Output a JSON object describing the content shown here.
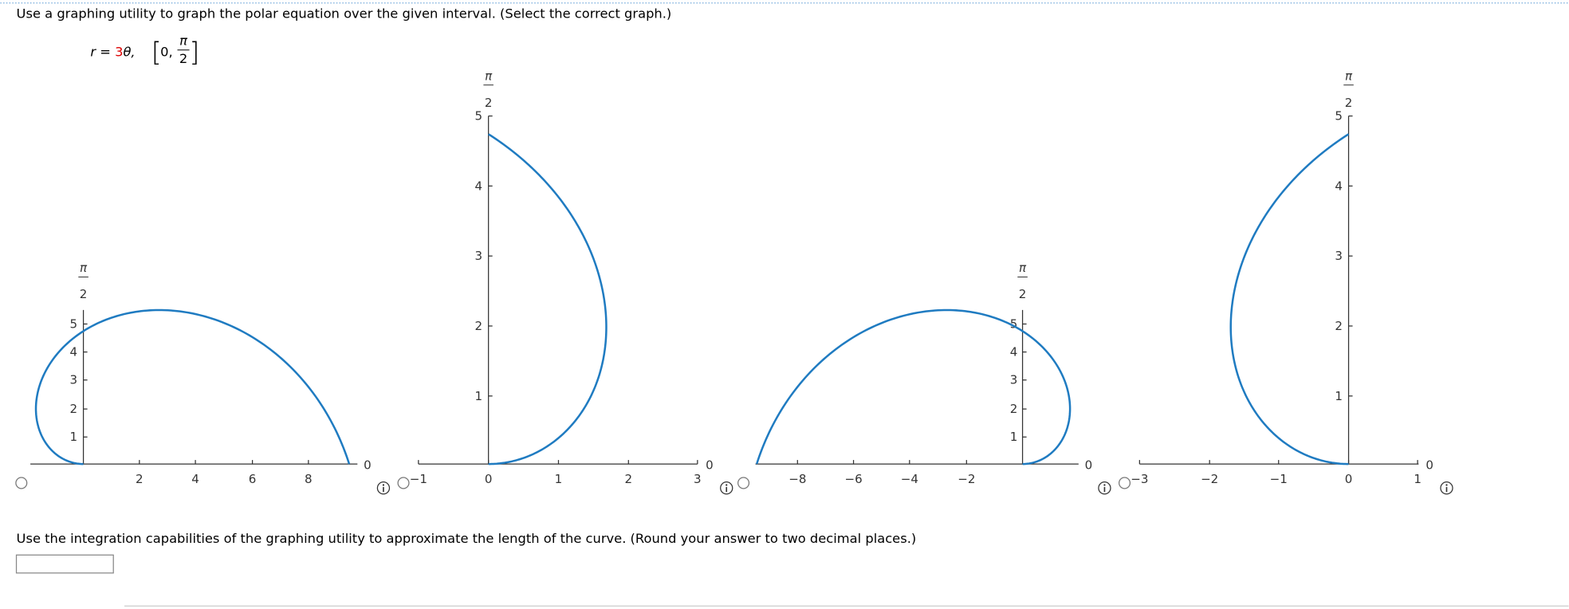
{
  "question": "Use a graphing utility to graph the polar equation over the given interval. (Select the correct graph.)",
  "equation": {
    "lhs": "r",
    "equals": " = ",
    "coefficient": "3",
    "variable": "θ,",
    "open_bracket": "[",
    "interval_start": "0,",
    "interval_end_numerator": "π",
    "interval_end_denominator": "2",
    "close_bracket": "]"
  },
  "options": [
    {
      "angle_numerator": "π",
      "angle_denominator": "2",
      "zero_label": "0",
      "x_ticks": [
        "2",
        "4",
        "6",
        "8"
      ],
      "y_ticks": [
        "1",
        "2",
        "3",
        "4",
        "5"
      ]
    },
    {
      "angle_numerator": "π",
      "angle_denominator": "2",
      "zero_label": "0",
      "x_ticks": [
        "−1",
        "0",
        "1",
        "2",
        "3"
      ],
      "y_ticks": [
        "1",
        "2",
        "3",
        "4",
        "5"
      ]
    },
    {
      "angle_numerator": "π",
      "angle_denominator": "2",
      "zero_label": "0",
      "x_ticks": [
        "−8",
        "−6",
        "−4",
        "−2"
      ],
      "y_ticks": [
        "1",
        "2",
        "3",
        "4",
        "5"
      ]
    },
    {
      "angle_numerator": "π",
      "angle_denominator": "2",
      "zero_label": "0",
      "x_ticks": [
        "−3",
        "−2",
        "−1",
        "0",
        "1"
      ],
      "y_ticks": [
        "1",
        "2",
        "3",
        "4",
        "5"
      ]
    }
  ],
  "followup": "Use the integration capabilities of the graphing utility to approximate the length of the curve. (Round your answer to two decimal places.)"
}
